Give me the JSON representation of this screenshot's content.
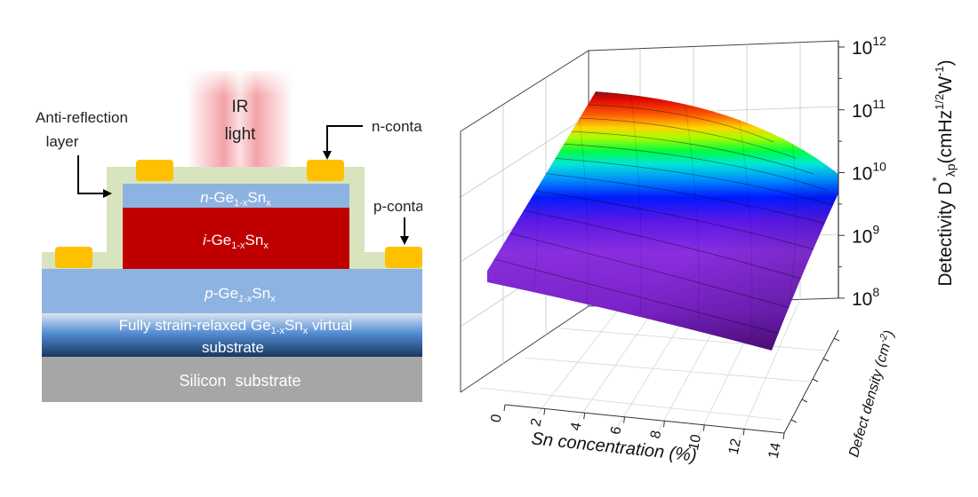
{
  "device": {
    "ir_label_line1": "IR",
    "ir_label_line2": "light",
    "anti_reflection_line1": "Anti-reflection",
    "anti_reflection_line2": "layer",
    "n_contact": "n-contact",
    "p_contact": "p-contact",
    "n_layer": {
      "prefix": "n",
      "base": "-Ge",
      "sub": "1-x",
      "mid": "Sn",
      "sub2": "x"
    },
    "i_layer": {
      "prefix": "i",
      "base": "-Ge",
      "sub": "1-x",
      "mid": "Sn",
      "sub2": "x"
    },
    "p_layer": {
      "prefix": "p",
      "base": "-Ge",
      "sub": "1-x",
      "mid": "Sn",
      "sub2": "x"
    },
    "virtual_line1_a": "Fully strain-relaxed Ge",
    "virtual_line1_sub": "1-x",
    "virtual_line1_b": "Sn",
    "virtual_line1_sub2": "x",
    "virtual_line1_c": " virtual",
    "virtual_line2": "substrate",
    "silicon": "Silicon  substrate",
    "colors": {
      "ir": "#f4a3a8",
      "anti_reflection": "#d7e4bd",
      "contact": "#ffc000",
      "n_layer": "#8db3e2",
      "i_layer": "#c00000",
      "p_layer": "#8db3e2",
      "virtual_top": "#dbe5f1",
      "virtual_bottom": "#17375e",
      "silicon": "#a6a6a6"
    }
  },
  "chart_data": {
    "type": "surface3d",
    "x_axis": {
      "label": "Sn concentration (%)",
      "ticks": [
        "0",
        "2",
        "4",
        "6",
        "8",
        "10",
        "12",
        "14"
      ],
      "range": [
        0,
        14
      ]
    },
    "y_axis": {
      "label": "Defect density (cm",
      "label_sup": "-2",
      "label_end": ")"
    },
    "z_axis": {
      "label": "Detectivity D",
      "label_sup": "*",
      "label_sub": "λp",
      "label_units": "(cmHz",
      "label_units_sup": "1/2",
      "label_units_mid": "W",
      "label_units_sup2": "-1",
      "label_units_end": ")",
      "scale": "log",
      "range": [
        100000000.0,
        1000000000000.0
      ],
      "ticks": [
        {
          "base": "10",
          "exp": "8"
        },
        {
          "base": "10",
          "exp": "9"
        },
        {
          "base": "10",
          "exp": "10"
        },
        {
          "base": "10",
          "exp": "11"
        },
        {
          "base": "10",
          "exp": "12"
        }
      ]
    },
    "colormap": "rainbow",
    "grid": true
  }
}
